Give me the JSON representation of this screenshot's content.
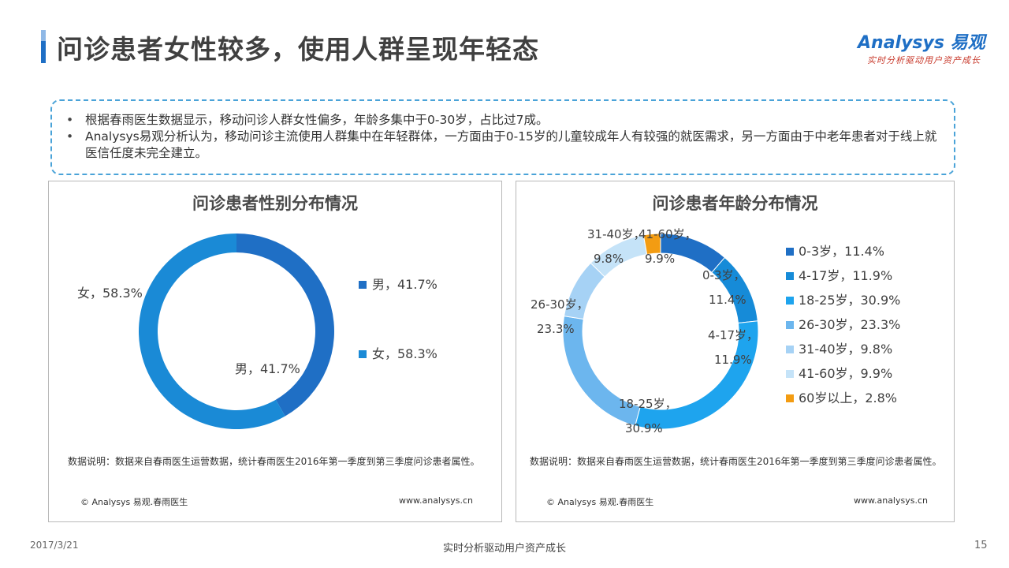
{
  "header": {
    "title": "问诊患者女性较多，使用人群呈现年轻态",
    "logo_text": "Analysys 易观",
    "logo_tagline": "实时分析驱动用户资产成长"
  },
  "summary": {
    "bullets": [
      "根据春雨医生数据显示，移动问诊人群女性偏多，年龄多集中于0-30岁，占比过7成。",
      "Analysys易观分析认为，移动问诊主流使用人群集中在年轻群体，一方面由于0-15岁的儿童较成年人有较强的就医需求，另一方面由于中老年患者对于线上就医信任度未完全建立。"
    ]
  },
  "left_panel": {
    "note": "数据说明：数据来自春雨医生运营数据，统计春雨医生2016年第一季度到第三季度问诊患者属性。",
    "copyright": "© Analysys 易观.春雨医生",
    "site": "www.analysys.cn"
  },
  "right_panel": {
    "note": "数据说明：数据来自春雨医生运营数据，统计春雨医生2016年第一季度到第三季度问诊患者属性。",
    "copyright": "© Analysys 易观.春雨医生",
    "site": "www.analysys.cn"
  },
  "footer": {
    "date": "2017/3/21",
    "tagline": "实时分析驱动用户资产成长",
    "page": "15"
  },
  "chart_data": [
    {
      "type": "pie",
      "title": "问诊患者性别分布情况",
      "categories": [
        "男",
        "女"
      ],
      "values": [
        41.7,
        58.3
      ],
      "unit": "%",
      "colors": [
        "#1f6fc5",
        "#1a8ad6"
      ],
      "data_labels": [
        "男，41.7%",
        "女，58.3%"
      ],
      "legend": [
        "男，41.7%",
        "女，58.3%"
      ],
      "legend_position": "right"
    },
    {
      "type": "pie",
      "title": "问诊患者年龄分布情况",
      "categories": [
        "0-3岁",
        "4-17岁",
        "18-25岁",
        "26-30岁",
        "31-40岁",
        "41-60岁",
        "60岁以上"
      ],
      "values": [
        11.4,
        11.9,
        30.9,
        23.3,
        9.8,
        9.9,
        2.8
      ],
      "unit": "%",
      "colors": [
        "#1f6fc5",
        "#168bd8",
        "#1ea4ee",
        "#6cb6ee",
        "#a6d2f5",
        "#c5e3f8",
        "#f39c12"
      ],
      "data_labels": [
        [
          "0-3岁，",
          "11.4%"
        ],
        [
          "4-17岁，",
          "11.9%"
        ],
        [
          "18-25岁，",
          "30.9%"
        ],
        [
          "26-30岁，",
          "23.3%"
        ],
        [
          "31-40岁，",
          "9.8%"
        ],
        [
          "41-60岁，",
          "9.9%"
        ]
      ],
      "legend": [
        "0-3岁，11.4%",
        "4-17岁，11.9%",
        "18-25岁，30.9%",
        "26-30岁，23.3%",
        "31-40岁，9.8%",
        "41-60岁，9.9%",
        "60岁以上，2.8%"
      ],
      "legend_position": "right"
    }
  ]
}
